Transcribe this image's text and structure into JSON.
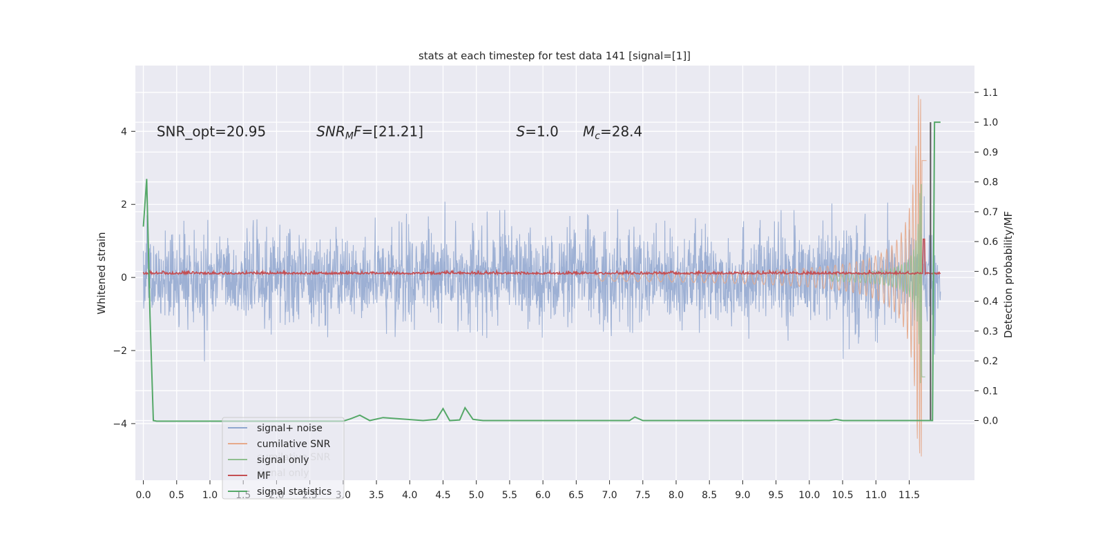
{
  "chart_data": {
    "type": "line",
    "title": "stats at each timestep for test data 141 [signal=[1]]",
    "ylabel": "Whitened strain",
    "y2label": "Detection probability/MF",
    "xlim": [
      -0.12,
      12.48
    ],
    "ylim": [
      -5.55,
      5.8
    ],
    "y2lim": [
      -0.2,
      1.19
    ],
    "x_ticks": [
      0.0,
      0.5,
      1.0,
      1.5,
      2.0,
      2.5,
      3.0,
      3.5,
      4.0,
      4.5,
      5.0,
      5.5,
      6.0,
      6.5,
      7.0,
      7.5,
      8.0,
      8.5,
      9.0,
      9.5,
      10.0,
      10.5,
      11.0,
      11.5
    ],
    "x_tick_labels": [
      "0.0",
      "0.5",
      "1.0",
      "1.5",
      "2.0",
      "2.5",
      "3.0",
      "3.5",
      "4.0",
      "4.5",
      "5.0",
      "5.5",
      "6.0",
      "6.5",
      "7.0",
      "7.5",
      "8.0",
      "8.5",
      "9.0",
      "9.5",
      "10.0",
      "10.5",
      "11.0",
      "11.5"
    ],
    "y_ticks": [
      -4,
      -2,
      0,
      2,
      4
    ],
    "y_tick_labels": [
      "−4",
      "−2",
      "0",
      "2",
      "4"
    ],
    "y2_ticks": [
      0.0,
      0.1,
      0.2,
      0.3,
      0.4,
      0.5,
      0.6,
      0.7,
      0.8,
      0.9,
      1.0,
      1.1
    ],
    "y2_tick_labels": [
      "0.0",
      "0.1",
      "0.2",
      "0.3",
      "0.4",
      "0.5",
      "0.6",
      "0.7",
      "0.8",
      "0.9",
      "1.0",
      "1.1"
    ],
    "grid": true,
    "legend_placement": "lower-left",
    "legend": [
      {
        "label": "signal+ noise",
        "color": "#8fa6cf"
      },
      {
        "label": "cumilative SNR",
        "color": "#e6a98a"
      },
      {
        "label": "signal only",
        "color": "#8fbf8f"
      },
      {
        "label": "MF",
        "color": "#c44e52"
      },
      {
        "label": "signal statistics",
        "color": "#55a868"
      }
    ],
    "ghost_legend": [
      {
        "label": "cumilative SNR"
      },
      {
        "label": "signal only"
      }
    ],
    "annotations": [
      {
        "text": "SNR_opt=20.95",
        "x": 0.2,
        "y": 4.0
      },
      {
        "text": "SNR_MF=[21.21]",
        "x": 2.6,
        "y": 4.0
      },
      {
        "text": "S=1.0",
        "x": 5.6,
        "y": 4.0
      },
      {
        "text": "M_c=28.4",
        "x": 6.6,
        "y": 4.0
      }
    ],
    "series": [
      {
        "name": "signal statistics",
        "axis": "right",
        "color": "#55a868",
        "x": [
          0.0,
          0.05,
          0.1,
          0.15,
          0.2,
          3.0,
          3.1,
          3.25,
          3.4,
          3.6,
          4.2,
          4.4,
          4.5,
          4.6,
          4.75,
          4.83,
          4.95,
          5.1,
          7.3,
          7.38,
          7.5,
          10.3,
          10.4,
          10.5,
          11.85,
          11.88,
          11.92,
          11.97
        ],
        "y": [
          0.65,
          0.81,
          0.35,
          0.0,
          -0.002,
          -0.002,
          0.005,
          0.018,
          0.0,
          0.01,
          0.0,
          0.004,
          0.04,
          0.0,
          0.002,
          0.043,
          0.004,
          0.0,
          0.0,
          0.012,
          0.0,
          0.0,
          0.004,
          0.0,
          0.0,
          1.0,
          1.0,
          1.0
        ]
      }
    ]
  }
}
